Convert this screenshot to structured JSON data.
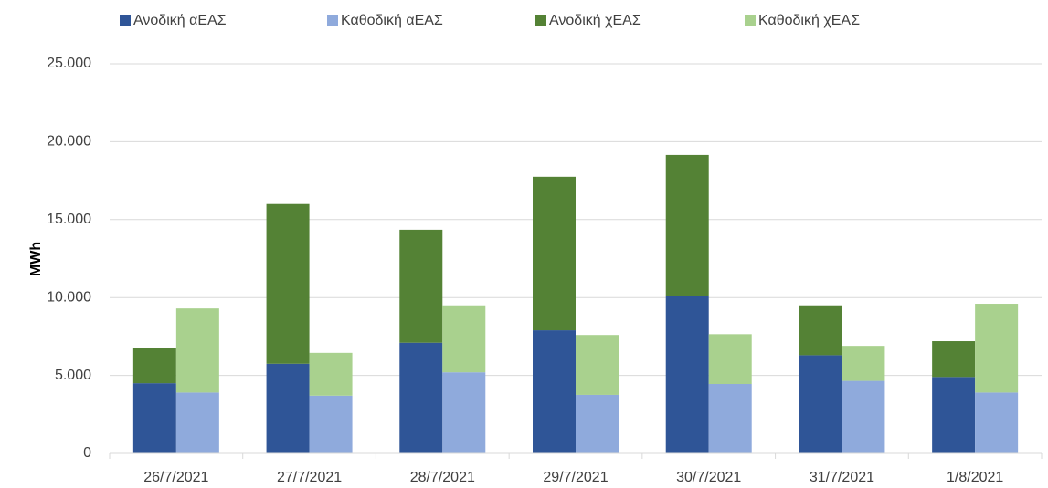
{
  "chart_data": {
    "type": "bar",
    "y_label": "MWh",
    "categories": [
      "26/7/2021",
      "27/7/2021",
      "28/7/2021",
      "29/7/2021",
      "30/7/2021",
      "31/7/2021",
      "1/8/2021"
    ],
    "series": [
      {
        "name": "Ανοδική αΕΑΣ",
        "color": "#2f5597",
        "values": [
          4500,
          5750,
          7100,
          7900,
          10100,
          6300,
          4900
        ]
      },
      {
        "name": "Καθοδική αΕΑΣ",
        "color": "#8faadc",
        "values": [
          3900,
          3700,
          5200,
          3750,
          4450,
          4650,
          3900
        ]
      },
      {
        "name": "Ανοδική χΕΑΣ",
        "color": "#548235",
        "values": [
          2250,
          10250,
          7250,
          9850,
          9050,
          3200,
          2300
        ]
      },
      {
        "name": "Καθοδική χΕΑΣ",
        "color": "#a9d18e",
        "values": [
          5400,
          2750,
          4300,
          3850,
          3200,
          2250,
          5700
        ]
      }
    ],
    "ylim": [
      0,
      25000
    ],
    "yticks": [
      0,
      {
        "value": 5000,
        "label": "5.000"
      },
      {
        "value": 10000,
        "label": "10.000"
      },
      {
        "value": 15000,
        "label": "15.000"
      },
      {
        "value": 20000,
        "label": "20.000"
      },
      {
        "value": 25000,
        "label": "25.000"
      }
    ],
    "grid": true
  }
}
